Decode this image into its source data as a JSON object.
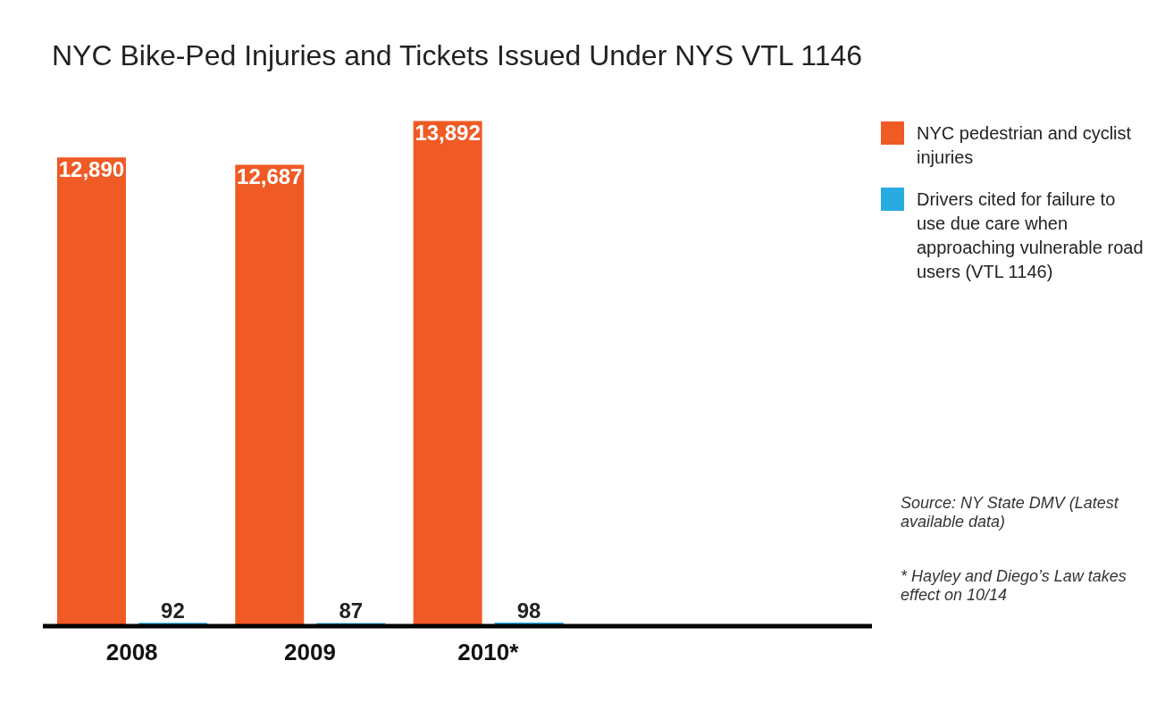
{
  "chart_data": {
    "type": "bar",
    "title": "NYC Bike-Ped Injuries and Tickets Issued Under NYS VTL 1146",
    "categories": [
      "2008",
      "2009",
      "2010*"
    ],
    "series": [
      {
        "name": "NYC pedestrian and cyclist injuries",
        "color": "#f05a24",
        "values": [
          12890,
          12687,
          13892
        ],
        "value_labels": [
          "12,890",
          "12,687",
          "13,892"
        ]
      },
      {
        "name": "Drivers cited for failure to use due care when approaching vulnerable road users (VTL 1146)",
        "color": "#29abe2",
        "values": [
          92,
          87,
          98
        ],
        "value_labels": [
          "92",
          "87",
          "98"
        ]
      }
    ],
    "legend": "top right",
    "annotations": [
      "Source: NY State DMV (Latest available data)",
      "* Hayley and Diego’s Law takes effect on 10/14"
    ]
  }
}
